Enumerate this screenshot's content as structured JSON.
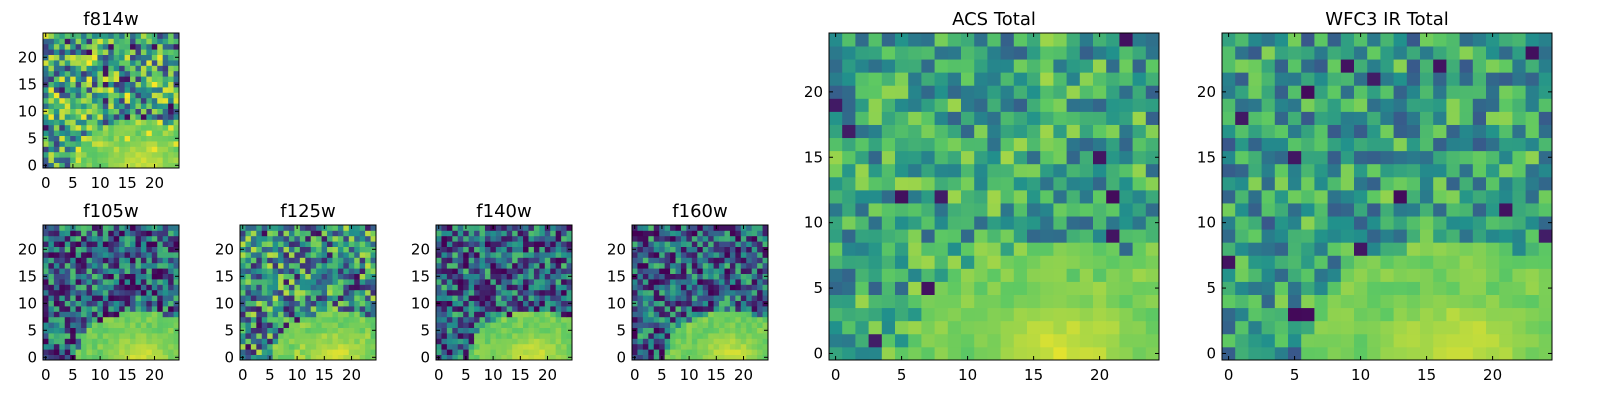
{
  "figure": {
    "description_free": true,
    "colormap": [
      "#440154",
      "#3b528b",
      "#21918c",
      "#5ec962",
      "#fde725"
    ]
  },
  "chart_data": [
    {
      "type": "heatmap",
      "id": "f814w",
      "title": "f814w",
      "grid": [
        25,
        25
      ],
      "xlim": [
        -0.5,
        24.5
      ],
      "ylim": [
        -0.5,
        24.5
      ],
      "xticks": [
        0,
        5,
        10,
        15,
        20
      ],
      "yticks": [
        0,
        5,
        10,
        15,
        20
      ],
      "style": "noisy-green",
      "bright_region": "bottom-right"
    },
    {
      "type": "heatmap",
      "id": "f105w",
      "title": "f105w",
      "grid": [
        25,
        25
      ],
      "xlim": [
        -0.5,
        24.5
      ],
      "ylim": [
        -0.5,
        24.5
      ],
      "xticks": [
        0,
        5,
        10,
        15,
        20
      ],
      "yticks": [
        0,
        5,
        10,
        15,
        20
      ],
      "style": "dark-blue",
      "bright_region": "bottom-right"
    },
    {
      "type": "heatmap",
      "id": "f125w",
      "title": "f125w",
      "grid": [
        25,
        25
      ],
      "xlim": [
        -0.5,
        24.5
      ],
      "ylim": [
        -0.5,
        24.5
      ],
      "xticks": [
        0,
        5,
        10,
        15,
        20
      ],
      "yticks": [
        0,
        5,
        10,
        15,
        20
      ],
      "style": "green-teal",
      "bright_region": "bottom-right"
    },
    {
      "type": "heatmap",
      "id": "f140w",
      "title": "f140w",
      "grid": [
        25,
        25
      ],
      "xlim": [
        -0.5,
        24.5
      ],
      "ylim": [
        -0.5,
        24.5
      ],
      "xticks": [
        0,
        5,
        10,
        15,
        20
      ],
      "yticks": [
        0,
        5,
        10,
        15,
        20
      ],
      "style": "dark-blue",
      "bright_region": "bottom-right"
    },
    {
      "type": "heatmap",
      "id": "f160w",
      "title": "f160w",
      "grid": [
        25,
        25
      ],
      "xlim": [
        -0.5,
        24.5
      ],
      "ylim": [
        -0.5,
        24.5
      ],
      "xticks": [
        0,
        5,
        10,
        15,
        20
      ],
      "yticks": [
        0,
        5,
        10,
        15,
        20
      ],
      "style": "dark-blue",
      "bright_region": "bottom-right"
    },
    {
      "type": "heatmap",
      "id": "acs-total",
      "title": "ACS Total",
      "grid": [
        25,
        25
      ],
      "xlim": [
        -0.5,
        24.5
      ],
      "ylim": [
        -0.5,
        24.5
      ],
      "xticks": [
        0,
        5,
        10,
        15,
        20
      ],
      "yticks": [
        0,
        5,
        10,
        15,
        20
      ],
      "style": "blocky-green",
      "bright_region": "bottom-right"
    },
    {
      "type": "heatmap",
      "id": "wfc3-ir-total",
      "title": "WFC3 IR Total",
      "grid": [
        25,
        25
      ],
      "xlim": [
        -0.5,
        24.5
      ],
      "ylim": [
        -0.5,
        24.5
      ],
      "xticks": [
        0,
        5,
        10,
        15,
        20
      ],
      "yticks": [
        0,
        5,
        10,
        15,
        20
      ],
      "style": "blocky-teal",
      "bright_region": "bottom-right"
    }
  ]
}
